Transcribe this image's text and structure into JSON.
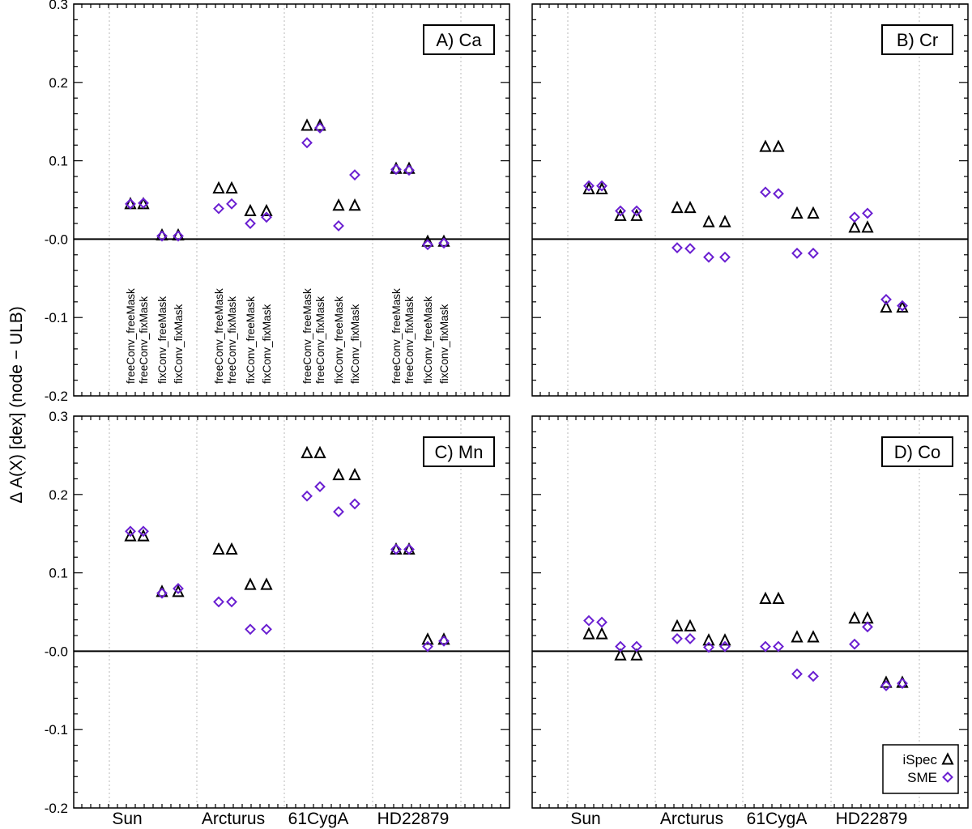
{
  "chart_data": {
    "type": "scatter",
    "ylabel": "Δ A(X) [dex] (node − ULB)",
    "ylim": [
      -0.2,
      0.3
    ],
    "yticks": [
      -0.2,
      -0.1,
      0.0,
      0.1,
      0.2,
      0.3
    ],
    "ytick_labels": [
      "-0.2",
      "-0.1",
      "-0.0",
      "0.1",
      "0.2",
      "0.3"
    ],
    "categories": [
      "Sun",
      "Arcturus",
      "61CygA",
      "HD22879"
    ],
    "configurations": [
      "freeConv_freeMask",
      "freeConv_fixMask",
      "fixConv_freeMask",
      "fixConv_fixMask"
    ],
    "legend": {
      "position": "lower-right",
      "entries": [
        {
          "label": "iSpec",
          "marker": "triangle",
          "color": "#000000"
        },
        {
          "label": "SME",
          "marker": "diamond",
          "color": "#6a1fd1"
        }
      ]
    },
    "colors": {
      "ispec": "#000000",
      "sme": "#6a1fd1",
      "grid": "#b8b8b8"
    },
    "panels": [
      {
        "title": "A) Ca",
        "show_config_labels": true,
        "show_category_labels": false,
        "show_yticklabels": true,
        "show_legend": false,
        "series": [
          {
            "name": "iSpec",
            "values": [
              0.045,
              0.045,
              0.005,
              0.005,
              0.065,
              0.065,
              0.036,
              0.036,
              0.145,
              0.145,
              0.043,
              0.043,
              0.09,
              0.09,
              -0.003,
              -0.003
            ]
          },
          {
            "name": "SME",
            "values": [
              0.045,
              0.046,
              0.004,
              0.004,
              0.039,
              0.045,
              0.02,
              0.028,
              0.123,
              0.142,
              0.017,
              0.082,
              0.089,
              0.088,
              -0.007,
              -0.005
            ]
          }
        ]
      },
      {
        "title": "B) Cr",
        "show_config_labels": false,
        "show_category_labels": false,
        "show_yticklabels": false,
        "show_legend": false,
        "series": [
          {
            "name": "iSpec",
            "values": [
              0.064,
              0.064,
              0.03,
              0.03,
              0.04,
              0.04,
              0.022,
              0.022,
              0.118,
              0.118,
              0.033,
              0.033,
              0.015,
              0.015,
              -0.087,
              -0.087
            ]
          },
          {
            "name": "SME",
            "values": [
              0.068,
              0.068,
              0.036,
              0.036,
              -0.011,
              -0.012,
              -0.023,
              -0.023,
              0.06,
              0.058,
              -0.018,
              -0.018,
              0.028,
              0.033,
              -0.077,
              -0.085
            ]
          }
        ]
      },
      {
        "title": "C) Mn",
        "show_config_labels": false,
        "show_category_labels": true,
        "show_yticklabels": true,
        "show_legend": false,
        "series": [
          {
            "name": "iSpec",
            "values": [
              0.147,
              0.147,
              0.076,
              0.076,
              0.13,
              0.13,
              0.085,
              0.085,
              0.253,
              0.253,
              0.225,
              0.225,
              0.13,
              0.13,
              0.015,
              0.015
            ]
          },
          {
            "name": "SME",
            "values": [
              0.153,
              0.153,
              0.074,
              0.08,
              0.063,
              0.063,
              0.028,
              0.028,
              0.198,
              0.21,
              0.178,
              0.188,
              0.13,
              0.13,
              0.006,
              0.013
            ]
          }
        ]
      },
      {
        "title": "D) Co",
        "show_config_labels": false,
        "show_category_labels": true,
        "show_yticklabels": false,
        "show_legend": true,
        "series": [
          {
            "name": "iSpec",
            "values": [
              0.022,
              0.022,
              -0.005,
              -0.005,
              0.032,
              0.032,
              0.014,
              0.014,
              0.067,
              0.067,
              0.018,
              0.018,
              0.042,
              0.042,
              -0.04,
              -0.04
            ]
          },
          {
            "name": "SME",
            "values": [
              0.039,
              0.037,
              0.006,
              0.006,
              0.016,
              0.016,
              0.005,
              0.006,
              0.006,
              0.006,
              -0.029,
              -0.032,
              0.009,
              0.031,
              -0.044,
              -0.041
            ]
          }
        ]
      }
    ]
  }
}
